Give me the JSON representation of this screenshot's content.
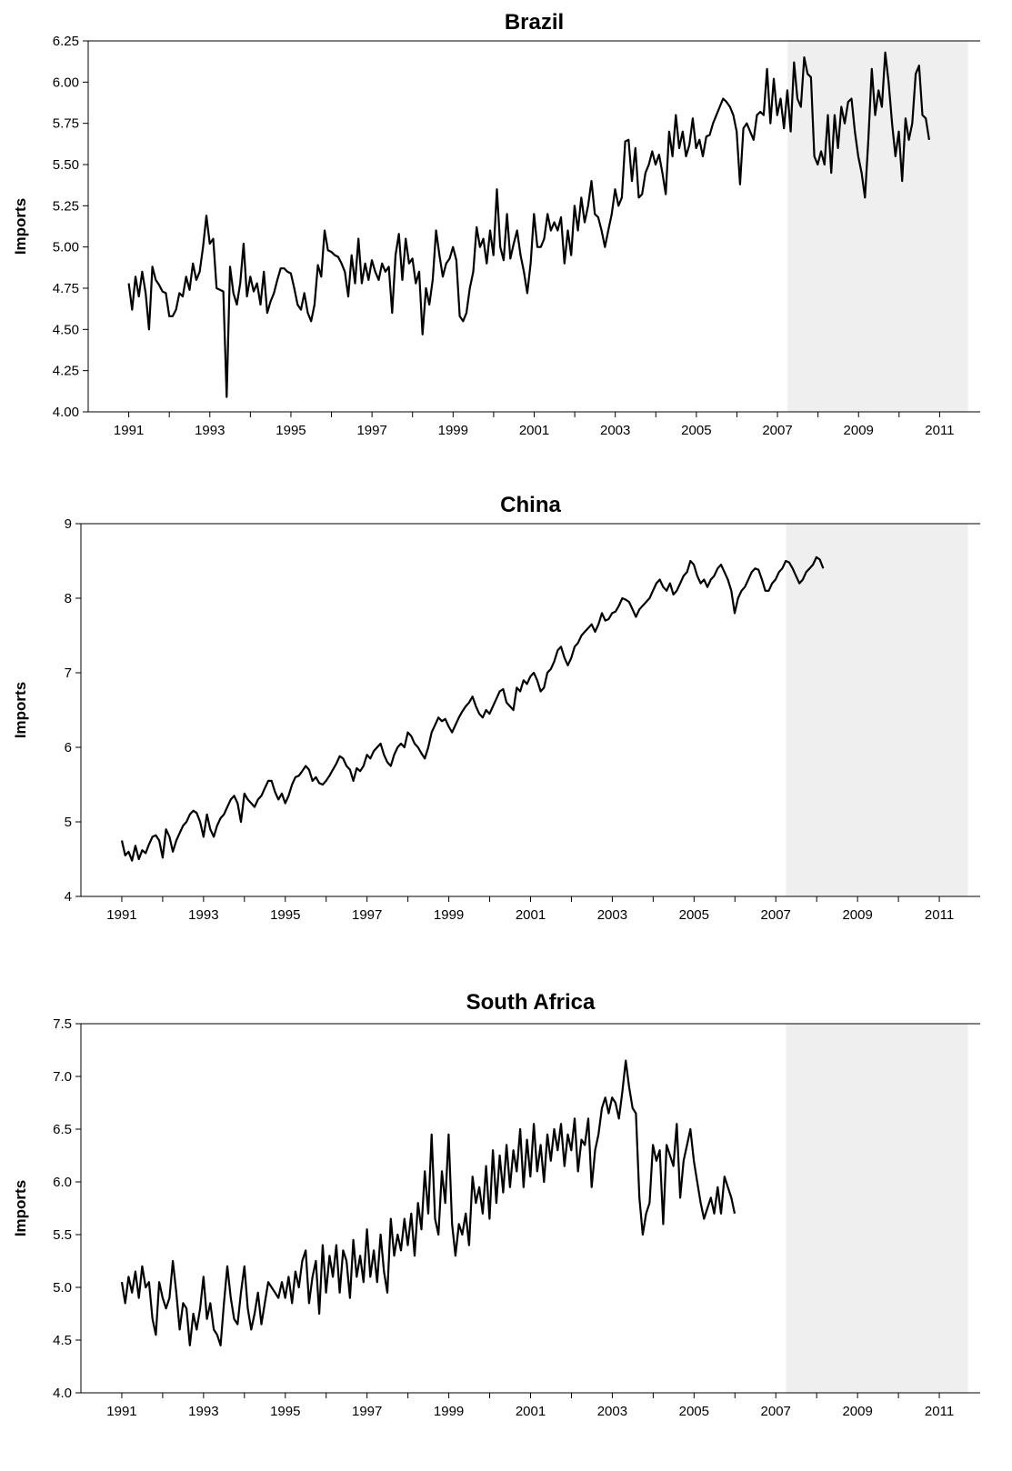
{
  "chart_data": [
    {
      "type": "line",
      "title": "Brazil",
      "ylabel": "Imports",
      "xlabel": "",
      "ylim": [
        4.0,
        6.25
      ],
      "yticks": [
        "4.00",
        "4.25",
        "4.50",
        "4.75",
        "5.00",
        "5.25",
        "5.50",
        "5.75",
        "6.00",
        "6.25"
      ],
      "xticks": [
        "1991",
        "1993",
        "1995",
        "1997",
        "1999",
        "2001",
        "2003",
        "2005",
        "2007",
        "2009",
        "2011"
      ],
      "xlim": [
        1990,
        2012
      ],
      "shaded_period": [
        2007.25,
        2011.7
      ],
      "series": [
        {
          "x_start": 1991.0,
          "x_step": 0.0833,
          "values": [
            4.78,
            4.62,
            4.82,
            4.7,
            4.85,
            4.72,
            4.5,
            4.88,
            4.8,
            4.77,
            4.73,
            4.72,
            4.58,
            4.58,
            4.62,
            4.72,
            4.7,
            4.82,
            4.74,
            4.9,
            4.8,
            4.85,
            5.0,
            5.19,
            5.02,
            5.05,
            4.75,
            4.74,
            4.73,
            4.09,
            4.88,
            4.72,
            4.65,
            4.78,
            5.02,
            4.7,
            4.82,
            4.73,
            4.78,
            4.65,
            4.85,
            4.6,
            4.67,
            4.72,
            4.8,
            4.87,
            4.87,
            4.85,
            4.84,
            4.75,
            4.65,
            4.62,
            4.72,
            4.6,
            4.55,
            4.65,
            4.89,
            4.82,
            5.1,
            4.98,
            4.97,
            4.95,
            4.94,
            4.9,
            4.85,
            4.7,
            4.95,
            4.78,
            5.05,
            4.78,
            4.9,
            4.8,
            4.92,
            4.85,
            4.8,
            4.9,
            4.85,
            4.88,
            4.6,
            4.95,
            5.08,
            4.8,
            5.05,
            4.9,
            4.93,
            4.78,
            4.85,
            4.47,
            4.75,
            4.65,
            4.8,
            5.1,
            4.95,
            4.82,
            4.9,
            4.93,
            5.0,
            4.92,
            4.58,
            4.55,
            4.6,
            4.75,
            4.85,
            5.12,
            5.0,
            5.05,
            4.9,
            5.1,
            4.95,
            5.35,
            5.0,
            4.92,
            5.2,
            4.93,
            5.02,
            5.1,
            4.95,
            4.85,
            4.72,
            4.9,
            5.2,
            5.0,
            5.0,
            5.05,
            5.2,
            5.1,
            5.15,
            5.1,
            5.18,
            4.9,
            5.1,
            4.95,
            5.25,
            5.1,
            5.3,
            5.15,
            5.25,
            5.4,
            5.2,
            5.18,
            5.1,
            5.0,
            5.1,
            5.2,
            5.35,
            5.25,
            5.3,
            5.64,
            5.65,
            5.4,
            5.6,
            5.3,
            5.32,
            5.45,
            5.5,
            5.58,
            5.5,
            5.56,
            5.45,
            5.32,
            5.7,
            5.55,
            5.8,
            5.6,
            5.7,
            5.55,
            5.62,
            5.78,
            5.6,
            5.65,
            5.55,
            5.67,
            5.68,
            5.75,
            5.8,
            5.85,
            5.9,
            5.88,
            5.85,
            5.8,
            5.7,
            5.38,
            5.72,
            5.75,
            5.7,
            5.65,
            5.8,
            5.82,
            5.8,
            6.08,
            5.75,
            6.02,
            5.8,
            5.9,
            5.72,
            5.95,
            5.7,
            6.12,
            5.9,
            5.85,
            6.15,
            6.05,
            6.03,
            5.55,
            5.5,
            5.58,
            5.5,
            5.8,
            5.45,
            5.8,
            5.6,
            5.85,
            5.75,
            5.88,
            5.9,
            5.7,
            5.55,
            5.45,
            5.3,
            5.65,
            6.08,
            5.8,
            5.95,
            5.85,
            6.18,
            6.0,
            5.75,
            5.55,
            5.7,
            5.4,
            5.78,
            5.65,
            5.75,
            6.05,
            6.1,
            5.8,
            5.78,
            5.65
          ]
        }
      ]
    },
    {
      "type": "line",
      "title": "China",
      "ylabel": "Imports",
      "xlabel": "",
      "ylim": [
        4,
        9
      ],
      "yticks": [
        "4",
        "5",
        "6",
        "7",
        "8",
        "9"
      ],
      "xticks": [
        "1991",
        "1993",
        "1995",
        "1997",
        "1999",
        "2001",
        "2003",
        "2005",
        "2007",
        "2009",
        "2011"
      ],
      "xlim": [
        1990,
        2012
      ],
      "shaded_period": [
        2007.25,
        2011.7
      ],
      "series": [
        {
          "x_start": 1991.0,
          "x_step": 0.0833,
          "values": [
            4.75,
            4.55,
            4.6,
            4.48,
            4.68,
            4.5,
            4.62,
            4.58,
            4.7,
            4.8,
            4.82,
            4.75,
            4.52,
            4.9,
            4.8,
            4.6,
            4.75,
            4.85,
            4.95,
            5.0,
            5.1,
            5.15,
            5.12,
            5.0,
            4.8,
            5.1,
            4.9,
            4.8,
            4.95,
            5.05,
            5.1,
            5.2,
            5.3,
            5.35,
            5.25,
            5.0,
            5.38,
            5.3,
            5.25,
            5.2,
            5.3,
            5.35,
            5.45,
            5.55,
            5.55,
            5.4,
            5.3,
            5.38,
            5.25,
            5.35,
            5.5,
            5.6,
            5.62,
            5.68,
            5.75,
            5.7,
            5.55,
            5.6,
            5.52,
            5.5,
            5.55,
            5.62,
            5.7,
            5.78,
            5.88,
            5.85,
            5.75,
            5.7,
            5.55,
            5.72,
            5.68,
            5.75,
            5.9,
            5.85,
            5.95,
            6.0,
            6.05,
            5.9,
            5.8,
            5.75,
            5.9,
            6.0,
            6.05,
            6.0,
            6.2,
            6.15,
            6.05,
            6.0,
            5.92,
            5.85,
            6.0,
            6.2,
            6.3,
            6.4,
            6.35,
            6.38,
            6.28,
            6.2,
            6.3,
            6.4,
            6.48,
            6.55,
            6.6,
            6.68,
            6.55,
            6.45,
            6.4,
            6.5,
            6.45,
            6.55,
            6.65,
            6.75,
            6.78,
            6.6,
            6.55,
            6.5,
            6.8,
            6.75,
            6.9,
            6.85,
            6.95,
            7.0,
            6.9,
            6.75,
            6.8,
            7.0,
            7.05,
            7.15,
            7.3,
            7.35,
            7.2,
            7.1,
            7.2,
            7.35,
            7.4,
            7.5,
            7.55,
            7.6,
            7.65,
            7.55,
            7.65,
            7.8,
            7.7,
            7.72,
            7.8,
            7.82,
            7.9,
            8.0,
            7.98,
            7.95,
            7.85,
            7.75,
            7.85,
            7.9,
            7.95,
            8.0,
            8.1,
            8.2,
            8.25,
            8.15,
            8.1,
            8.2,
            8.05,
            8.1,
            8.2,
            8.3,
            8.35,
            8.5,
            8.45,
            8.3,
            8.2,
            8.25,
            8.15,
            8.25,
            8.3,
            8.4,
            8.45,
            8.35,
            8.25,
            8.1,
            7.8,
            8.0,
            8.1,
            8.15,
            8.25,
            8.35,
            8.4,
            8.38,
            8.25,
            8.1,
            8.1,
            8.2,
            8.25,
            8.35,
            8.4,
            8.5,
            8.48,
            8.4,
            8.3,
            8.2,
            8.25,
            8.35,
            8.4,
            8.45,
            8.55,
            8.52,
            8.4
          ]
        }
      ]
    },
    {
      "type": "line",
      "title": "South Africa",
      "ylabel": "Imports",
      "xlabel": "",
      "ylim": [
        4.0,
        7.5
      ],
      "yticks": [
        "4.0",
        "4.5",
        "5.0",
        "5.5",
        "6.0",
        "6.5",
        "7.0",
        "7.5"
      ],
      "xticks": [
        "1991",
        "1993",
        "1995",
        "1997",
        "1999",
        "2001",
        "2003",
        "2005",
        "2007",
        "2009",
        "2011"
      ],
      "xlim": [
        1990,
        2012
      ],
      "shaded_period": [
        2007.25,
        2011.7
      ],
      "series": [
        {
          "x_start": 1991.0,
          "x_step": 0.0833,
          "values": [
            5.05,
            4.85,
            5.1,
            4.95,
            5.15,
            4.9,
            5.2,
            5.0,
            5.05,
            4.7,
            4.55,
            5.05,
            4.9,
            4.8,
            4.9,
            5.25,
            4.95,
            4.6,
            4.85,
            4.8,
            4.45,
            4.75,
            4.6,
            4.8,
            5.1,
            4.7,
            4.85,
            4.6,
            4.55,
            4.45,
            4.85,
            5.2,
            4.9,
            4.7,
            4.65,
            4.95,
            5.2,
            4.8,
            4.6,
            4.75,
            4.95,
            4.65,
            4.85,
            5.05,
            5.0,
            4.95,
            4.9,
            5.05,
            4.9,
            5.1,
            4.85,
            5.15,
            5.0,
            5.25,
            5.35,
            4.85,
            5.1,
            5.25,
            4.75,
            5.4,
            4.95,
            5.3,
            5.1,
            5.4,
            4.95,
            5.35,
            5.25,
            4.9,
            5.45,
            5.1,
            5.3,
            5.05,
            5.55,
            5.1,
            5.35,
            5.05,
            5.5,
            5.15,
            4.95,
            5.65,
            5.3,
            5.5,
            5.35,
            5.65,
            5.4,
            5.7,
            5.3,
            5.8,
            5.55,
            6.1,
            5.7,
            6.45,
            5.65,
            5.5,
            6.1,
            5.8,
            6.45,
            5.6,
            5.3,
            5.6,
            5.5,
            5.7,
            5.4,
            6.05,
            5.8,
            5.95,
            5.7,
            6.15,
            5.65,
            6.3,
            5.8,
            6.25,
            5.9,
            6.35,
            5.95,
            6.3,
            6.1,
            6.5,
            5.95,
            6.4,
            6.05,
            6.55,
            6.1,
            6.35,
            6.0,
            6.45,
            6.2,
            6.5,
            6.3,
            6.55,
            6.15,
            6.45,
            6.3,
            6.6,
            6.1,
            6.4,
            6.35,
            6.6,
            5.95,
            6.3,
            6.45,
            6.7,
            6.8,
            6.65,
            6.8,
            6.75,
            6.6,
            6.85,
            7.15,
            6.9,
            6.7,
            6.65,
            5.85,
            5.5,
            5.7,
            5.8,
            6.35,
            6.2,
            6.3,
            5.6,
            6.35,
            6.25,
            6.15,
            6.55,
            5.85,
            6.2,
            6.35,
            6.5,
            6.2,
            6.0,
            5.8,
            5.65,
            5.75,
            5.85,
            5.7,
            5.95,
            5.7,
            6.05,
            5.95,
            5.85,
            5.7
          ]
        }
      ]
    }
  ]
}
